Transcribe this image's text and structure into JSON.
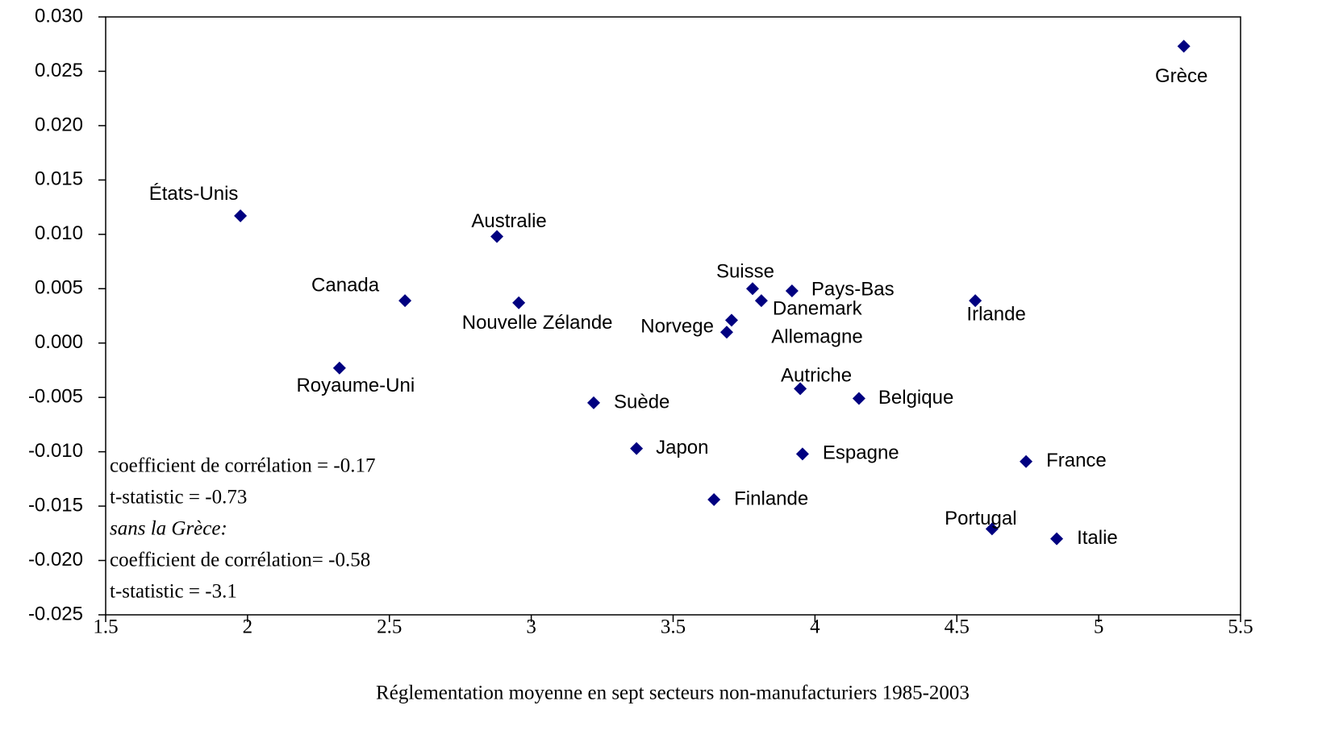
{
  "chart_data": {
    "type": "scatter",
    "xlabel": "Réglementation moyenne en sept secteurs non-manufacturiers 1985-2003",
    "annotations": [
      "coefficient de corrélation = -0.17",
      "t-statistic = -0.73",
      "sans la Grèce:",
      "coefficient de corrélation= -0.58",
      "t-statistic = -3.1"
    ],
    "xlim": [
      1.5,
      5.5
    ],
    "xticks": [
      1.5,
      2,
      2.5,
      3,
      3.5,
      4,
      4.5,
      5,
      5.5
    ],
    "ylim": [
      -0.025,
      0.03
    ],
    "yticks": [
      {
        "value": -0.025,
        "label": "-0.025"
      },
      {
        "value": -0.02,
        "label": "-0.020"
      },
      {
        "value": -0.015,
        "label": "-0.015"
      },
      {
        "value": -0.01,
        "label": "-0.010"
      },
      {
        "value": -0.005,
        "label": "-0.005"
      },
      {
        "value": 0,
        "label": "0.000"
      },
      {
        "value": 0.005,
        "label": "0.005"
      },
      {
        "value": 0.01,
        "label": "0.010"
      },
      {
        "value": 0.015,
        "label": "0.015"
      },
      {
        "value": 0.02,
        "label": "0.020"
      },
      {
        "value": 0.025,
        "label": "0.025"
      },
      {
        "value": 0.03,
        "label": "0.030"
      }
    ],
    "color": "#000080",
    "labels": [
      "Grèce",
      "États-Unis",
      "Australie",
      "Canada",
      "Nouvelle Zélande",
      "Royaume-Uni",
      "Suisse",
      "Pays-Bas",
      "Danemark",
      "Norvege",
      "Allemagne",
      "Irlande",
      "Autriche",
      "Belgique",
      "Suède",
      "Japon",
      "Espagne",
      "France",
      "Finlande",
      "Portugal",
      "Italie"
    ],
    "x": [
      5.3,
      1.975,
      2.879,
      2.555,
      2.956,
      2.324,
      3.78,
      3.919,
      3.811,
      3.706,
      3.689,
      4.565,
      3.948,
      4.155,
      3.22,
      3.371,
      3.956,
      4.744,
      3.644,
      4.624,
      4.852
    ],
    "values": [
      0.0273,
      0.0117,
      0.0098,
      0.0039,
      0.0037,
      -0.0023,
      0.005,
      0.0048,
      0.0039,
      0.0021,
      0.001,
      0.0039,
      -0.0042,
      -0.0051,
      -0.0055,
      -0.0097,
      -0.0102,
      -0.0109,
      -0.0144,
      -0.0171,
      -0.018
    ]
  }
}
